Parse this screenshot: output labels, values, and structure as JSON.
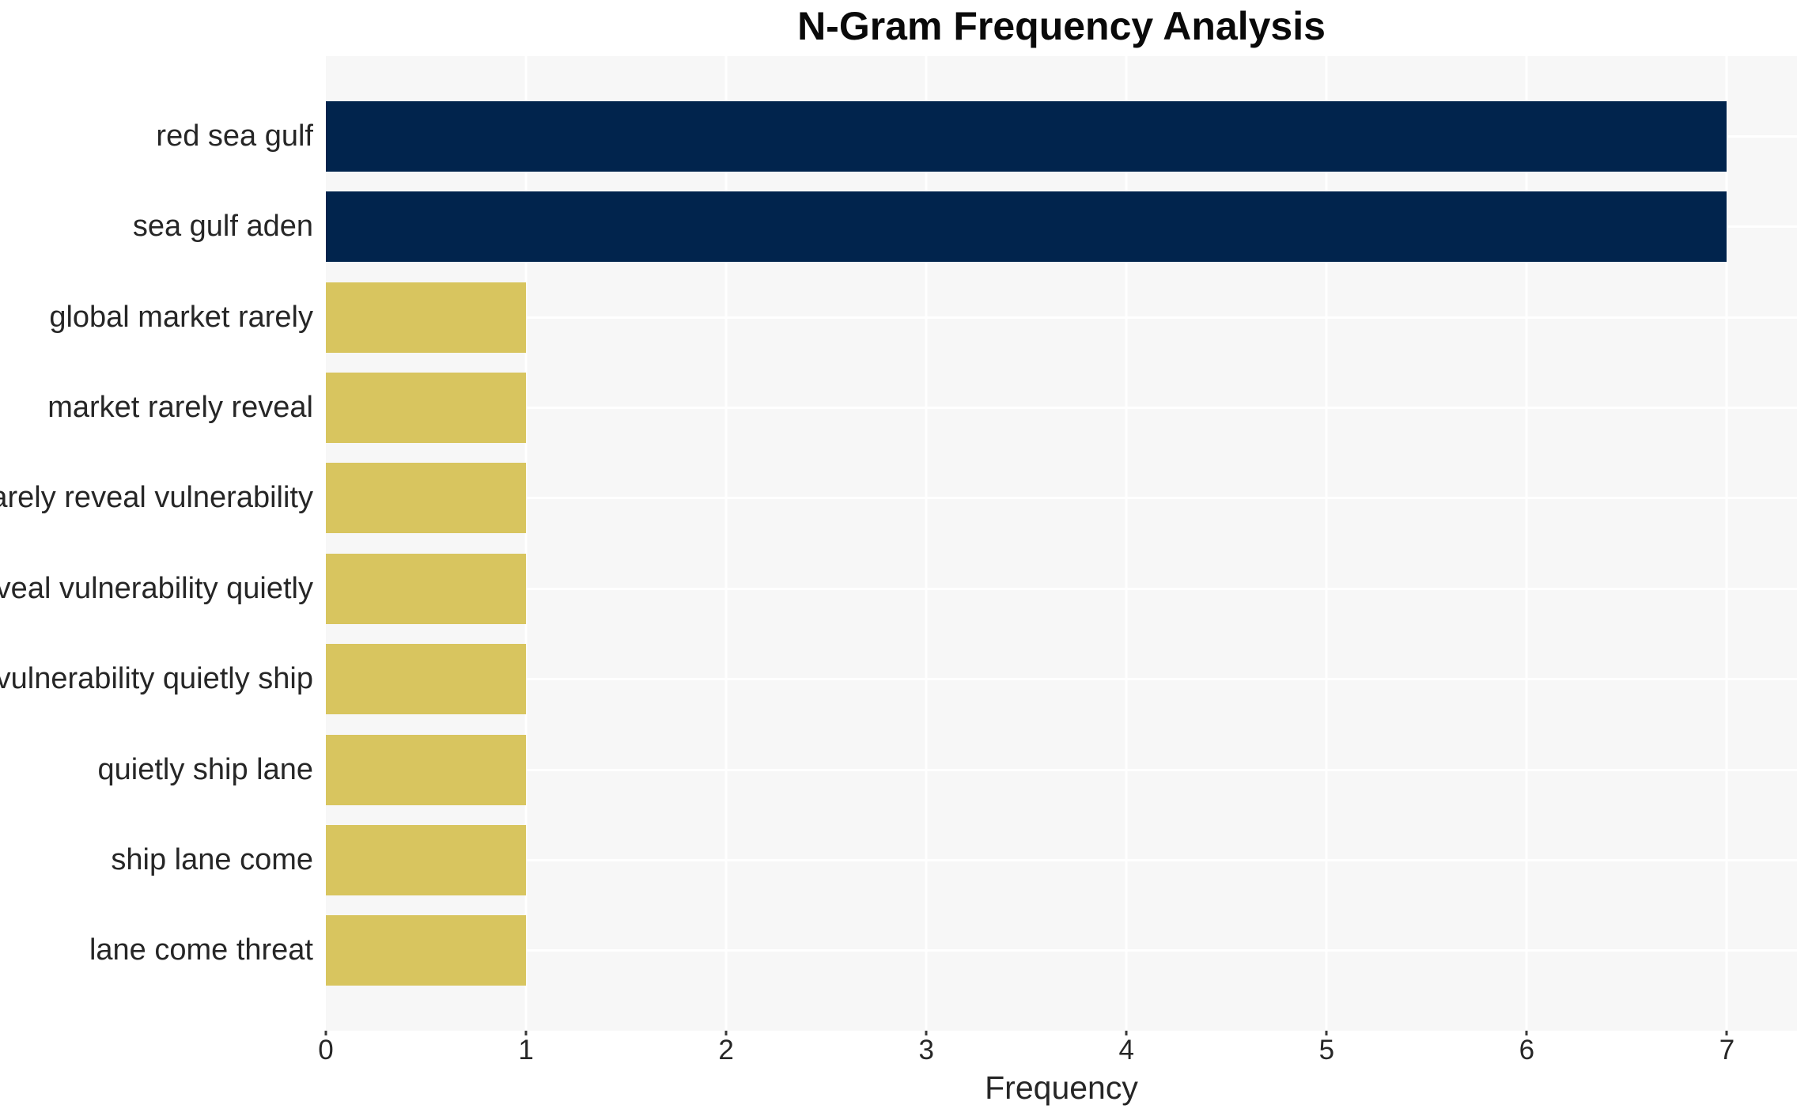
{
  "chart_data": {
    "type": "bar",
    "orientation": "horizontal",
    "title": "N-Gram Frequency Analysis",
    "xlabel": "Frequency",
    "ylabel": "",
    "categories": [
      "red sea gulf",
      "sea gulf aden",
      "global market rarely",
      "market rarely reveal",
      "rarely reveal vulnerability",
      "reveal vulnerability quietly",
      "vulnerability quietly ship",
      "quietly ship lane",
      "ship lane come",
      "lane come threat"
    ],
    "values": [
      7,
      7,
      1,
      1,
      1,
      1,
      1,
      1,
      1,
      1
    ],
    "bar_colors": [
      "#01244d",
      "#01244d",
      "#d8c55f",
      "#d8c55f",
      "#d8c55f",
      "#d8c55f",
      "#d8c55f",
      "#d8c55f",
      "#d8c55f",
      "#d8c55f"
    ],
    "xticks": [
      0,
      1,
      2,
      3,
      4,
      5,
      6,
      7
    ],
    "xlim": [
      0,
      7.35
    ],
    "grid": true,
    "legend": null,
    "colors": {
      "high_frequency_bar": "#01244d",
      "low_frequency_bar": "#d8c55f",
      "plot_background": "#f7f7f7",
      "gridline": "#ffffff",
      "text": "#262626",
      "title_text": "#0a0a0a"
    }
  }
}
